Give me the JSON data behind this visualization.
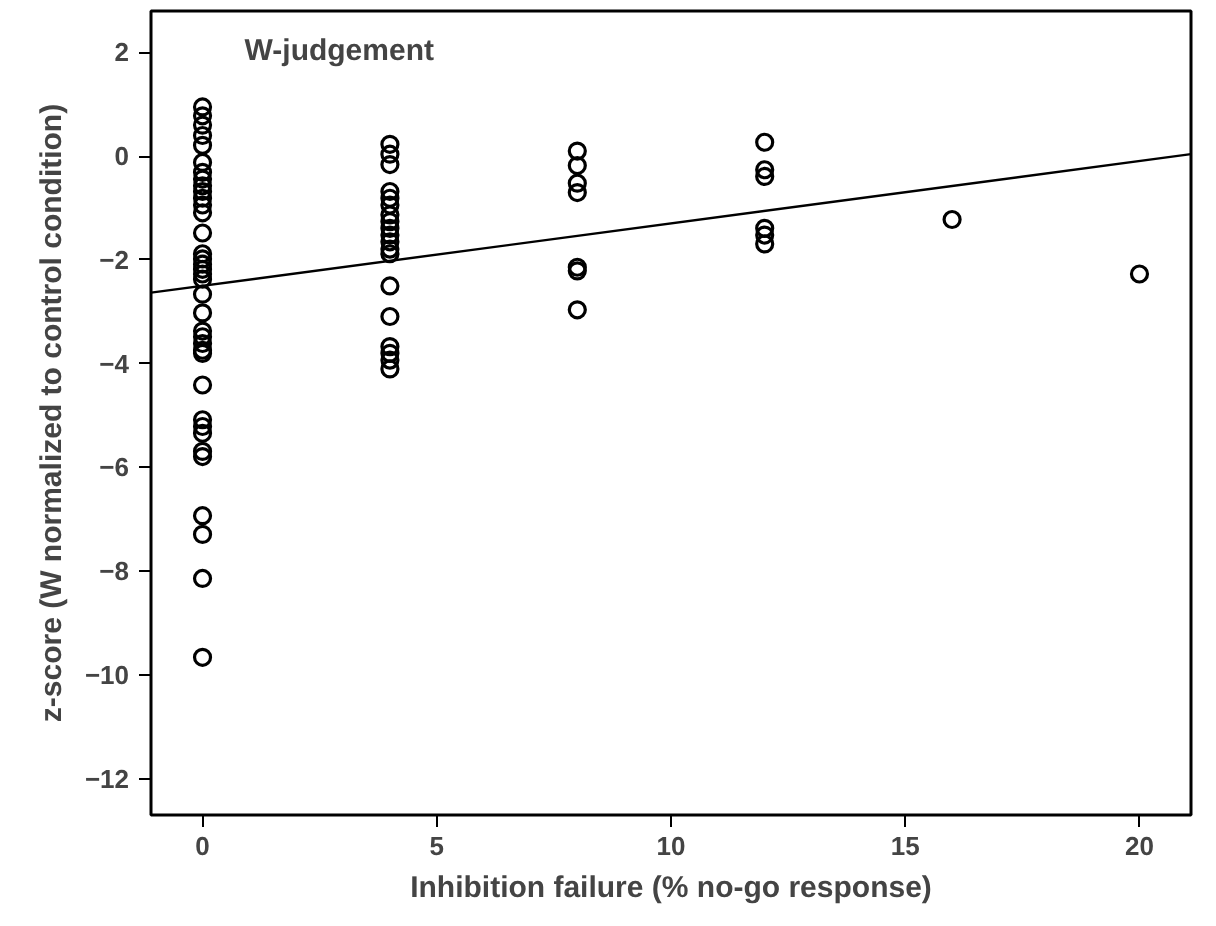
{
  "chart_data": {
    "type": "scatter",
    "title": "W-judgement",
    "xlabel": "Inhibition failure (% no-go response)",
    "ylabel": "z-score (W normalized to control condition)",
    "xlim": [
      -1.1,
      21.1
    ],
    "ylim": [
      -12.7,
      2.8
    ],
    "xticks": [
      0,
      5,
      10,
      15,
      20
    ],
    "yticks": [
      -12,
      -10,
      -8,
      -6,
      -4,
      -2,
      0,
      2
    ],
    "grid": false,
    "marker": "circle",
    "series": [
      {
        "color": "#000000",
        "x": [
          0,
          0,
          0,
          0,
          0,
          0,
          0,
          0,
          0,
          0,
          0,
          0,
          0,
          0,
          0,
          0,
          0,
          0,
          0,
          0,
          0,
          0,
          0,
          0,
          0,
          0,
          0,
          0,
          0,
          0,
          0,
          0,
          0,
          0,
          0,
          0,
          0,
          4,
          4,
          4,
          4,
          4,
          4,
          4,
          4,
          4,
          4,
          4,
          4,
          4,
          4,
          4,
          4,
          4,
          4,
          4,
          8,
          8,
          8,
          8,
          8,
          8,
          8,
          12,
          12,
          12,
          12,
          12,
          12,
          16,
          20
        ],
        "values": [
          0.95,
          0.78,
          0.6,
          0.4,
          0.21,
          -0.12,
          -0.31,
          -0.44,
          -0.57,
          -0.68,
          -0.81,
          -0.94,
          -1.09,
          -1.48,
          -1.88,
          -1.98,
          -2.08,
          -2.18,
          -2.27,
          -2.37,
          -2.66,
          -3.02,
          -3.37,
          -3.48,
          -3.61,
          -3.74,
          -3.8,
          -4.41,
          -5.08,
          -5.21,
          -5.34,
          -5.69,
          -5.79,
          -6.93,
          -7.29,
          -8.14,
          -9.66,
          0.23,
          0.04,
          -0.16,
          -0.68,
          -0.81,
          -0.94,
          -1.13,
          -1.26,
          -1.39,
          -1.52,
          -1.65,
          -1.79,
          -1.88,
          -2.5,
          -3.09,
          -3.67,
          -3.8,
          -3.93,
          -4.1,
          0.1,
          -0.18,
          -0.52,
          -0.7,
          -2.14,
          -2.21,
          -2.96,
          0.27,
          -0.26,
          -0.39,
          -1.39,
          -1.52,
          -1.69,
          -1.22,
          -2.27
        ]
      },
      {
        "type": "line",
        "color": "#000000",
        "line_style": "solid",
        "marker": "none",
        "x": [
          -1.1,
          21.1
        ],
        "values": [
          -2.63,
          0.04
        ]
      }
    ]
  }
}
